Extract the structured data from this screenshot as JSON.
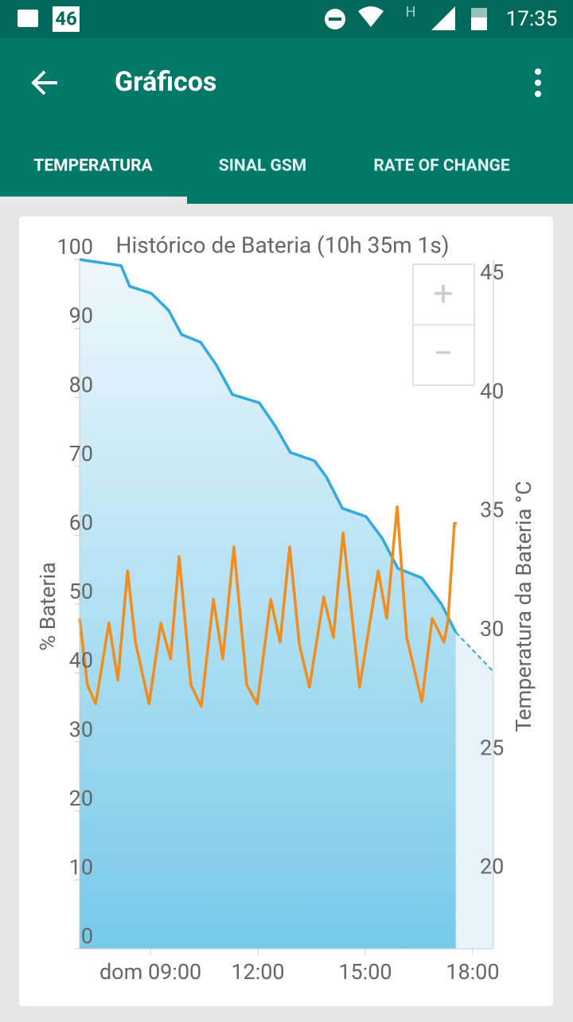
{
  "status_bar": {
    "network": "46",
    "signal_type": "H",
    "time": "17:35"
  },
  "app_bar": {
    "title": "Gráficos"
  },
  "tabs": [
    "TEMPERATURA",
    "SINAL GSM",
    "RATE OF CHANGE"
  ],
  "zoom": {
    "in": "+",
    "out": "−"
  },
  "chart_data": {
    "type": "line",
    "title": "Histórico de Bateria (10h 35m 1s)",
    "ylabel": "% Bateria",
    "y2label": "Temperatura da Bateria °C",
    "xlim": [
      7.02,
      18.58
    ],
    "xticks": [
      {
        "value": 9,
        "label": "dom 09:00"
      },
      {
        "value": 12,
        "label": "12:00"
      },
      {
        "value": 15,
        "label": "15:00"
      },
      {
        "value": 18,
        "label": "18:00"
      }
    ],
    "ylim": [
      0,
      100
    ],
    "yticks": [
      0,
      10,
      20,
      30,
      40,
      50,
      60,
      70,
      80,
      90,
      100
    ],
    "y2lim": [
      16.6,
      45.6
    ],
    "y2ticks": [
      20,
      25,
      30,
      35,
      40,
      45
    ],
    "series": [
      {
        "color": "#33aadd",
        "fill": true,
        "dashed": false,
        "x": [
          7.02,
          8.18,
          8.42,
          9.02,
          9.51,
          9.87,
          10.4,
          10.84,
          11.29,
          12.04,
          12.49,
          12.91,
          13.58,
          13.91,
          14.36,
          15.02,
          15.47,
          15.91,
          16.58,
          17.13,
          17.53
        ],
        "values": [
          100,
          99.1,
          96.1,
          95.1,
          92.6,
          89.1,
          88.0,
          84.7,
          80.4,
          79.2,
          75.8,
          72.0,
          70.8,
          68.5,
          63.9,
          62.7,
          59.6,
          55.2,
          53.8,
          50.0,
          45.9
        ]
      },
      {
        "color": "#33aadd",
        "fill": true,
        "dashed": true,
        "x": [
          17.53,
          18.58
        ],
        "values": [
          45.9,
          40.2
        ]
      },
      {
        "color": "#f28c1c",
        "fill": false,
        "dashed": false,
        "axis": "y2",
        "x": [
          7.02,
          7.24,
          7.47,
          7.84,
          8.09,
          8.36,
          8.58,
          8.96,
          9.29,
          9.56,
          9.8,
          10.13,
          10.42,
          10.76,
          11.02,
          11.33,
          11.69,
          11.98,
          12.36,
          12.62,
          12.89,
          13.16,
          13.44,
          13.84,
          14.11,
          14.38,
          14.84,
          15.36,
          15.6,
          15.89,
          16.16,
          16.58,
          16.87,
          17.2,
          17.31,
          17.49,
          17.56
        ],
        "values": [
          30.5,
          27.7,
          26.9,
          30.3,
          27.9,
          32.5,
          29.5,
          26.9,
          30.3,
          28.8,
          33.1,
          27.7,
          26.8,
          31.3,
          28.8,
          33.5,
          27.7,
          26.9,
          31.3,
          29.5,
          33.5,
          29.4,
          27.6,
          31.4,
          29.7,
          34.1,
          27.6,
          32.5,
          30.5,
          35.2,
          29.7,
          27.0,
          30.5,
          29.5,
          30.4,
          34.5,
          34.5
        ]
      }
    ]
  }
}
